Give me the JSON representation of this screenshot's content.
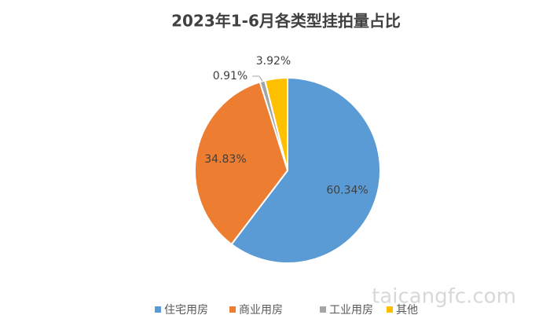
{
  "chart_data": {
    "type": "pie",
    "title": "2023年1-6月各类型挂拍量占比",
    "categories": [
      "住宅用房",
      "商业用房",
      "工业用房",
      "其他"
    ],
    "values": [
      60.34,
      34.83,
      0.91,
      3.92
    ],
    "value_labels": [
      "60.34%",
      "34.83%",
      "0.91%",
      "3.92%"
    ],
    "colors": [
      "#5b9bd5",
      "#ed7d31",
      "#a5a5a5",
      "#ffc000"
    ],
    "legend": "bottom"
  },
  "watermark": "taicangfc.com"
}
